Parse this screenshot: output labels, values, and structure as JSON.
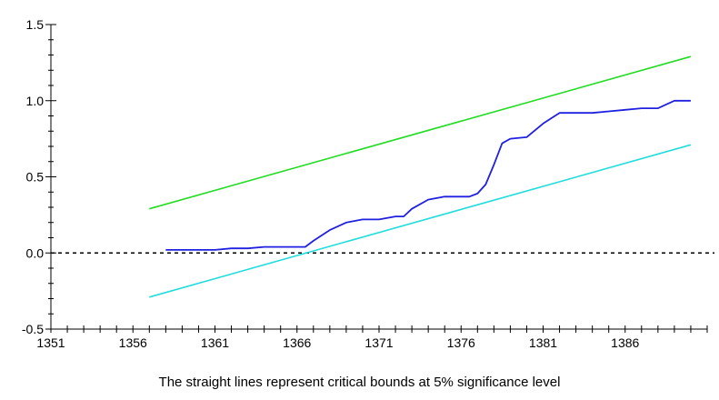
{
  "caption": "The straight lines represent critical bounds at 5% significance level",
  "chart_data": {
    "type": "line",
    "title": "",
    "xlabel": "",
    "ylabel": "",
    "xlim": [
      1351,
      1391
    ],
    "ylim": [
      -0.5,
      1.5
    ],
    "x_ticks": [
      1351,
      1356,
      1361,
      1366,
      1371,
      1376,
      1381,
      1386
    ],
    "y_ticks": [
      -0.5,
      0.0,
      0.5,
      1.0,
      1.5
    ],
    "y_tick_labels": [
      "-0.5",
      "0.0",
      "0.5",
      "1.0",
      "1.5"
    ],
    "zero_line": {
      "y": 0,
      "style": "dashed",
      "color": "#000000"
    },
    "grid": false,
    "series": [
      {
        "color": "#2020e0",
        "x": [
          1358,
          1359,
          1360,
          1361,
          1362,
          1363,
          1364,
          1365,
          1366,
          1366.5,
          1367,
          1368,
          1369,
          1370,
          1371,
          1371.5,
          1372,
          1372.5,
          1373,
          1374,
          1375,
          1376,
          1376.5,
          1377,
          1377.5,
          1378,
          1378.5,
          1379,
          1380,
          1381,
          1382,
          1383,
          1384,
          1385,
          1386,
          1387,
          1388,
          1389,
          1390
        ],
        "y": [
          0.02,
          0.02,
          0.02,
          0.02,
          0.03,
          0.03,
          0.04,
          0.04,
          0.04,
          0.04,
          0.08,
          0.15,
          0.2,
          0.22,
          0.22,
          0.23,
          0.24,
          0.24,
          0.29,
          0.35,
          0.37,
          0.37,
          0.37,
          0.39,
          0.45,
          0.58,
          0.72,
          0.75,
          0.76,
          0.85,
          0.92,
          0.92,
          0.92,
          0.93,
          0.94,
          0.95,
          0.95,
          1.0,
          1.0
        ]
      },
      {
        "color": "#22dd22",
        "x": [
          1357,
          1390
        ],
        "y": [
          0.29,
          1.29
        ]
      },
      {
        "color": "#22dddd",
        "x": [
          1357,
          1390
        ],
        "y": [
          -0.29,
          0.71
        ]
      }
    ]
  }
}
